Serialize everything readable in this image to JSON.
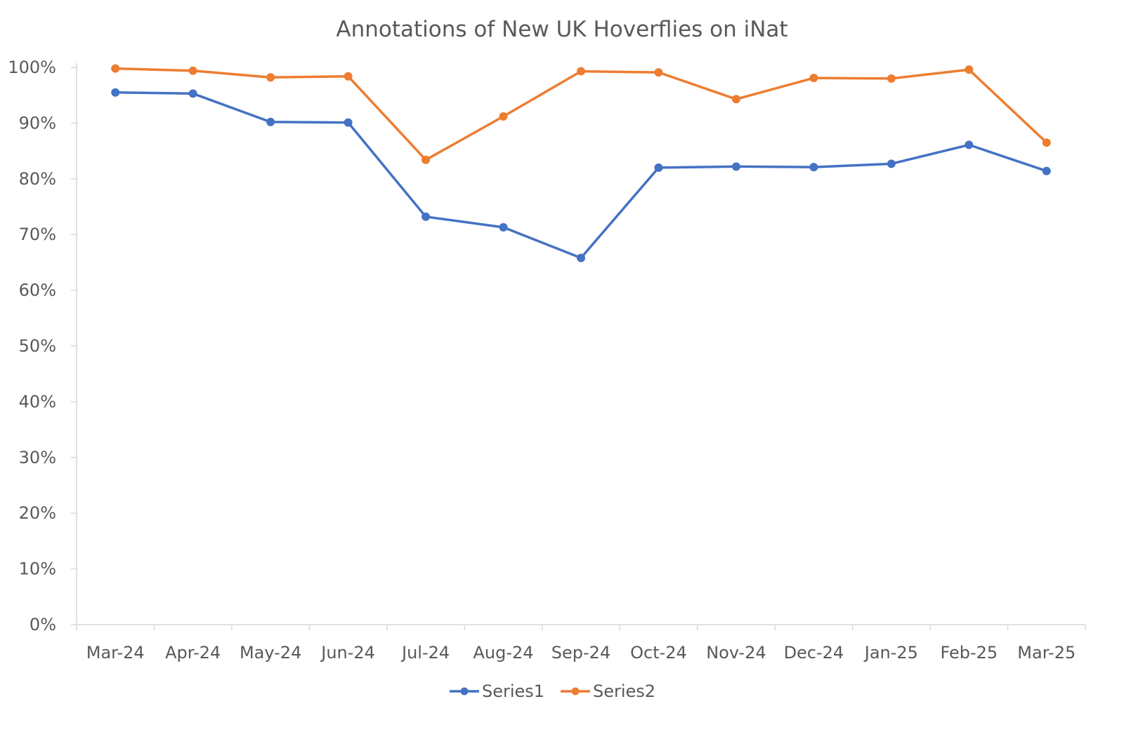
{
  "chart_data": {
    "type": "line",
    "title": "Annotations of New UK Hoverflies on iNat",
    "xlabel": "",
    "ylabel": "",
    "categories": [
      "Mar-24",
      "Apr-24",
      "May-24",
      "Jun-24",
      "Jul-24",
      "Aug-24",
      "Sep-24",
      "Oct-24",
      "Nov-24",
      "Dec-24",
      "Jan-25",
      "Feb-25",
      "Mar-25"
    ],
    "ylim": [
      0,
      1
    ],
    "y_ticks": [
      "0%",
      "10%",
      "20%",
      "30%",
      "40%",
      "50%",
      "60%",
      "70%",
      "80%",
      "90%",
      "100%"
    ],
    "grid": false,
    "legend_position": "bottom",
    "series": [
      {
        "name": "Series1",
        "color": "#4472C4",
        "values": [
          0.955,
          0.953,
          0.902,
          0.901,
          0.732,
          0.713,
          0.658,
          0.82,
          0.822,
          0.821,
          0.827,
          0.861,
          0.814
        ]
      },
      {
        "name": "Series2",
        "color": "#ED7D31",
        "values": [
          0.998,
          0.994,
          0.982,
          0.984,
          0.834,
          0.912,
          0.993,
          0.991,
          0.943,
          0.981,
          0.98,
          0.996,
          0.865
        ]
      }
    ]
  }
}
